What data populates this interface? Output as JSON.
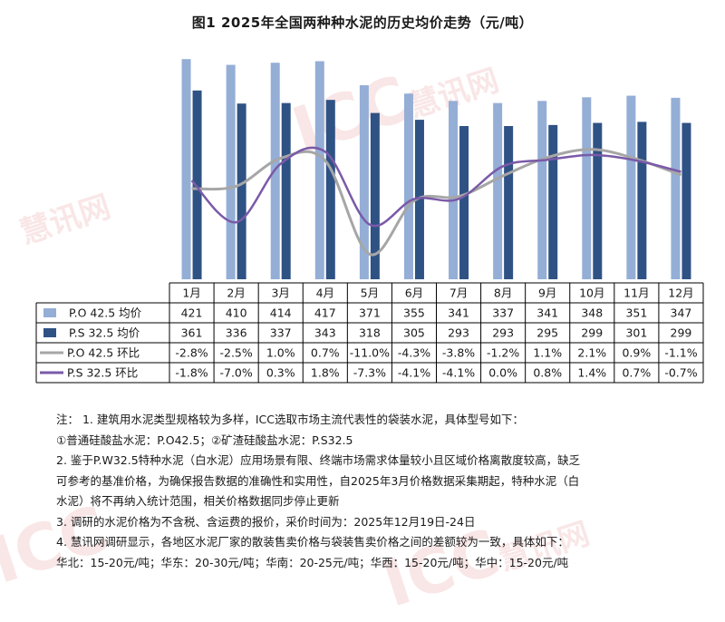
{
  "title": "图1 2025年全国两种种水泥的历史均价走势（元/吨）",
  "colors": {
    "bar_po": "#94AED6",
    "bar_ps": "#2F5284",
    "line_po": "#A6A6A6",
    "line_ps": "#7A5AA8"
  },
  "watermark": {
    "text_main": "ICC",
    "text_brand": "慧讯网"
  },
  "chart_data": {
    "type": "bar",
    "categories": [
      "1月",
      "2月",
      "3月",
      "4月",
      "5月",
      "6月",
      "7月",
      "8月",
      "9月",
      "10月",
      "11月",
      "12月"
    ],
    "series": [
      {
        "name": "P.O 42.5 均价",
        "kind": "bar",
        "values": [
          421,
          410,
          414,
          417,
          371,
          355,
          341,
          337,
          341,
          348,
          351,
          347
        ]
      },
      {
        "name": "P.S 32.5 均价",
        "kind": "bar",
        "values": [
          361,
          336,
          337,
          343,
          318,
          305,
          293,
          293,
          295,
          299,
          301,
          299
        ]
      },
      {
        "name": "P.O 42.5 环比",
        "kind": "line",
        "values": [
          -2.8,
          -2.5,
          1.0,
          0.7,
          -11.0,
          -4.3,
          -3.8,
          -1.2,
          1.1,
          2.1,
          0.9,
          -1.1
        ],
        "labels": [
          "-2.8%",
          "-2.5%",
          "1.0%",
          "0.7%",
          "-11.0%",
          "-4.3%",
          "-3.8%",
          "-1.2%",
          "1.1%",
          "2.1%",
          "0.9%",
          "-1.1%"
        ]
      },
      {
        "name": "P.S 32.5 环比",
        "kind": "line",
        "values": [
          -1.8,
          -7.0,
          0.3,
          1.8,
          -7.3,
          -4.1,
          -4.1,
          0.0,
          0.8,
          1.4,
          0.7,
          -0.7
        ],
        "labels": [
          "-1.8%",
          "-7.0%",
          "0.3%",
          "1.8%",
          "-7.3%",
          "-4.1%",
          "-4.1%",
          "0.0%",
          "0.8%",
          "1.4%",
          "0.7%",
          "-0.7%"
        ]
      }
    ],
    "bar_ylim": [
      0,
      430
    ],
    "line_ylim": [
      -13,
      4
    ],
    "legend": "data-table"
  },
  "notes": [
    "注： 1. 建筑用水泥类型规格较为多样，ICC选取市场主流代表性的袋装水泥，具体型号如下：",
    "①普通硅酸盐水泥：P.O42.5；②矿渣硅酸盐水泥：P.S32.5",
    "2. 鉴于P.W32.5特种水泥（白水泥）应用场景有限、终端市场需求体量较小且区域价格离散度较高，缺乏",
    "可参考的基准价格，为确保报告数据的准确性和实用性，自2025年3月价格数据采集期起，特种水泥（白",
    "水泥）将不再纳入统计范围，相关价格数据同步停止更新",
    "3. 调研的水泥价格为不含税、含运费的报价，采价时间为：2025年12月19日-24日",
    "4. 慧讯网调研显示，各地区水泥厂家的散装售卖价格与袋装售卖价格之间的差额较为一致，具体如下：",
    "华北：15-20元/吨；华东：20-30元/吨；华南：20-25元/吨；华西：15-20元/吨；华中：15-20元/吨"
  ]
}
